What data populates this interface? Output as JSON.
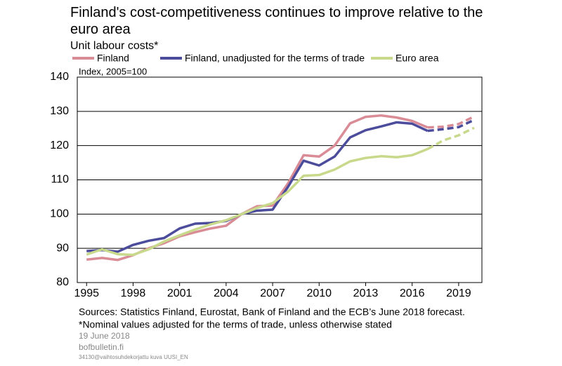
{
  "chart_data": {
    "type": "line",
    "title": "Finland's cost-competitiveness continues to improve relative to the euro area",
    "subtitle": "Unit labour costs*",
    "y_label": "Index, 2005=100",
    "x": [
      1995,
      1996,
      1997,
      1998,
      1999,
      2000,
      2001,
      2002,
      2003,
      2004,
      2005,
      2006,
      2007,
      2008,
      2009,
      2010,
      2011,
      2012,
      2013,
      2014,
      2015,
      2016,
      2017,
      2018,
      2019,
      2020
    ],
    "forecast_from": 2017,
    "series": [
      {
        "name": "Finland",
        "color": "#d98c96",
        "values": [
          86.7,
          87.2,
          86.6,
          88,
          90,
          91.5,
          93.5,
          94.7,
          95.8,
          96.6,
          100,
          102.3,
          102.5,
          109,
          117.2,
          116.8,
          120,
          126.5,
          128.4,
          128.8,
          128.2,
          127.2,
          125.3,
          125.5,
          126.3,
          128.5
        ]
      },
      {
        "name": "Finland, unadjusted for the terms of trade",
        "color": "#4c4c9c",
        "values": [
          89.2,
          89.5,
          89,
          91,
          92.2,
          93,
          95.8,
          97.2,
          97.4,
          98,
          100,
          101,
          101.3,
          108,
          115.6,
          114.2,
          116.8,
          122.4,
          124.5,
          125.6,
          126.8,
          126.4,
          124.3,
          124.8,
          125.4,
          127.5
        ]
      },
      {
        "name": "Euro area",
        "color": "#c8d98c",
        "values": [
          88.2,
          89.7,
          88.3,
          88.1,
          89.7,
          92,
          93.8,
          95.5,
          97,
          98.2,
          100,
          101.8,
          103.2,
          106.6,
          111.2,
          111.4,
          113,
          115.4,
          116.4,
          116.9,
          116.6,
          117.2,
          119,
          121.5,
          123,
          125.2
        ]
      }
    ],
    "xlim": [
      1994.4,
      2020.5
    ],
    "xticks": [
      1995,
      1998,
      2001,
      2004,
      2007,
      2010,
      2013,
      2016,
      2019
    ],
    "ylim": [
      80,
      140
    ],
    "yticks": [
      80,
      90,
      100,
      110,
      120,
      130,
      140
    ],
    "grid": true,
    "sources": "Sources: Statistics Finland, Eurostat, Bank of Finland and the ECB’s June 2018 forecast.",
    "note": "*Nominal values adjusted for the terms of trade, unless otherwise stated",
    "date": "19 June 2018",
    "site": "bofbulletin.fi",
    "file": "34130@vaihtosuhdekorjattu kuva UUSI_EN"
  }
}
